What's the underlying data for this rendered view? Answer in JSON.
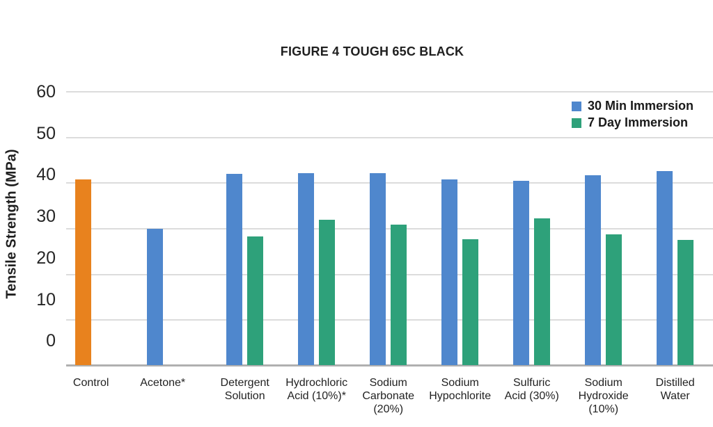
{
  "chart_data": {
    "type": "bar",
    "title": "FIGURE 4 TOUGH 65C BLACK",
    "xlabel": "",
    "ylabel": "Tensile Strength (MPa)",
    "ylim": [
      0,
      60
    ],
    "ytick_values": [
      60,
      50,
      40,
      30,
      20,
      10,
      0
    ],
    "grid": true,
    "legend_position": "top-right",
    "categories": [
      "Control",
      "Acetone*",
      "Detergent\nSolution",
      "Hydrochloric\nAcid (10%)*",
      "Sodium\nCarbonate\n(20%)",
      "Sodium\nHypochlorite",
      "Sulfuric\nAcid (30%)",
      "Sodium\nHydroxide\n(10%)",
      "Distilled\nWater"
    ],
    "series": [
      {
        "name": "30 Min Immersion",
        "color": "#4F87CD",
        "values": [
          40.6,
          29.8,
          41.9,
          42.0,
          42.1,
          40.6,
          40.3,
          41.6,
          42.5
        ]
      },
      {
        "name": "7 Day Immersion",
        "color": "#2EA17A",
        "values": [
          null,
          null,
          28.1,
          31.9,
          30.7,
          27.6,
          32.2,
          28.6,
          27.4
        ]
      }
    ],
    "bar_color_overrides": [
      {
        "category_index": 0,
        "series_index": 0,
        "color": "#E8821E"
      }
    ],
    "colors": {
      "grid": "#DCDCDC",
      "baseline": "#B0B0B0",
      "text": "#1F1F1F"
    }
  }
}
